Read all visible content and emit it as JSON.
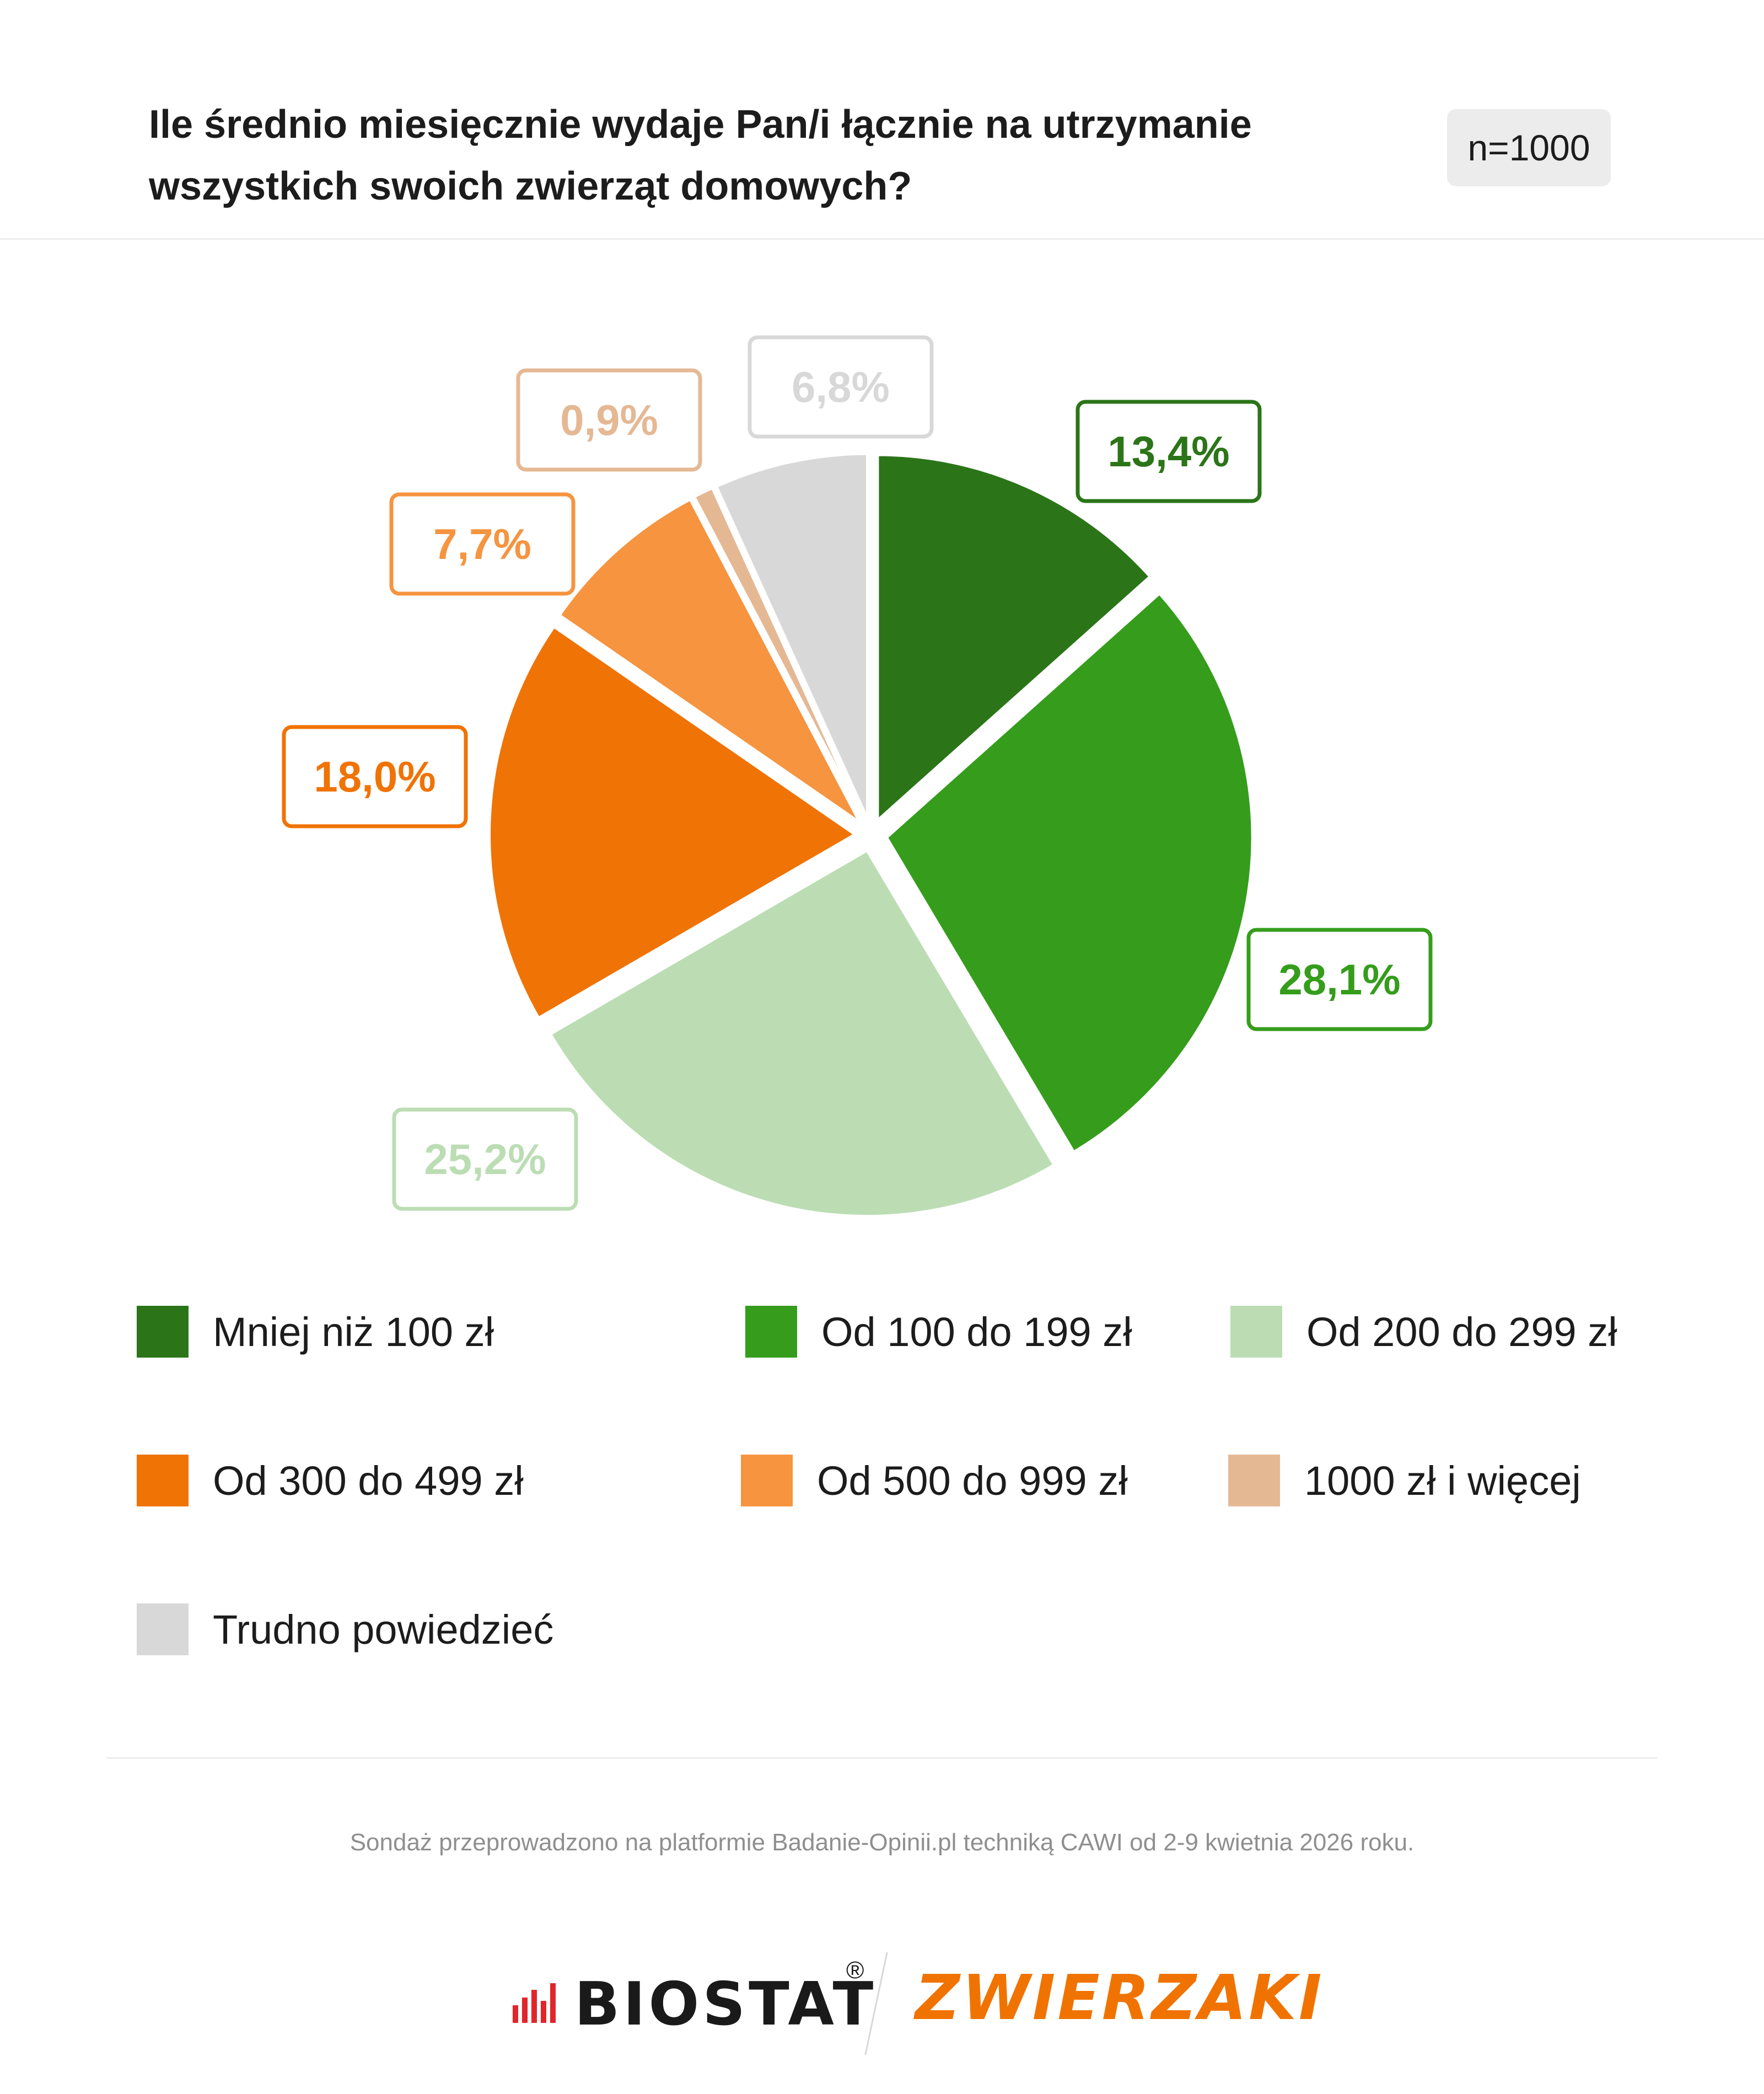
{
  "header": {
    "title_line1": "Ile średnio miesięcznie wydaje Pan/i łącznie na utrzymanie",
    "title_line2": "wszystkich swoich zwierząt domowych?",
    "sample": "n=1000"
  },
  "chart_data": {
    "type": "pie",
    "title": "Ile średnio miesięcznie wydaje Pan/i łącznie na utrzymanie wszystkich swoich zwierząt domowych?",
    "categories": [
      "Mniej niż 100 zł",
      "Od 100 do 199 zł",
      "Od 200 do 299 zł",
      "Od 300 do 499 zł",
      "Od 500 do 999 zł",
      "1000 zł i więcej",
      "Trudno powiedzieć"
    ],
    "values": [
      13.4,
      28.1,
      25.2,
      18.0,
      7.7,
      0.9,
      6.8
    ],
    "data_labels": [
      "13,4%",
      "28,1%",
      "25,2%",
      "18,0%",
      "7,7%",
      "0,9%",
      "6,8%"
    ],
    "colors": [
      "#2b7518",
      "#359d1b",
      "#bcddb4",
      "#f07306",
      "#f6943f",
      "#e5b894",
      "#d8d8d8"
    ],
    "label_colors": [
      "#2b7518",
      "#359d1b",
      "#bcddb4",
      "#f07306",
      "#f6943f",
      "#e5b894",
      "#d8d8d8"
    ],
    "legend_position": "bottom"
  },
  "legend": {
    "items": [
      "Mniej niż 100 zł",
      "Od 100 do 199 zł",
      "Od 200 do 299 zł",
      "Od 300 do 499 zł",
      "Od 500 do 999 zł",
      "1000 zł i więcej",
      "Trudno powiedzieć"
    ]
  },
  "footer": {
    "note": "Sondaż przeprowadzono na platformie Badanie-Opinii.pl techniką CAWI od 2-9 kwietnia 2026 roku.",
    "brand_primary": "BIOSTAT",
    "brand_registered": "®",
    "brand_secondary": "ZWIERZAKI"
  },
  "icons": {
    "brand_mark": "biostat-bars-icon"
  }
}
